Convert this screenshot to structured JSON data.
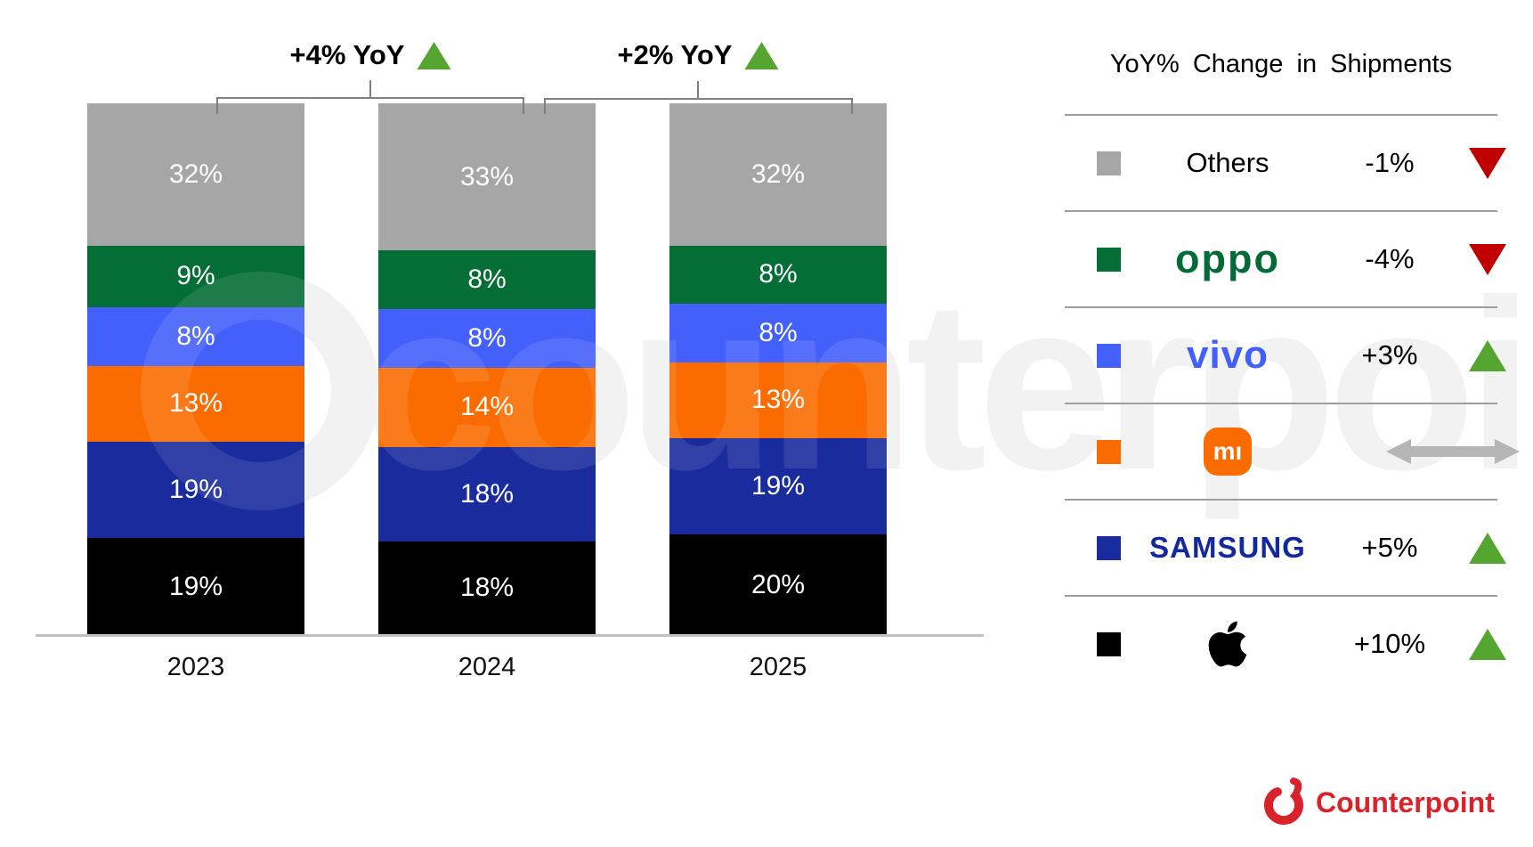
{
  "chart_data": {
    "type": "stacked-bar",
    "title": "",
    "categories": [
      "2023",
      "2024",
      "2025"
    ],
    "series": [
      {
        "name": "Others",
        "color": "#a6a6a6",
        "values": [
          32,
          33,
          32
        ]
      },
      {
        "name": "OPPO",
        "color": "#056e36",
        "values": [
          9,
          8,
          8
        ]
      },
      {
        "name": "vivo",
        "color": "#4360fb",
        "values": [
          8,
          8,
          8
        ]
      },
      {
        "name": "Xiaomi",
        "color": "#fa6c00",
        "values": [
          13,
          14,
          13
        ]
      },
      {
        "name": "Samsung",
        "color": "#1a2b9e",
        "values": [
          19,
          18,
          19
        ]
      },
      {
        "name": "Apple",
        "color": "#000000",
        "values": [
          19,
          18,
          20
        ]
      }
    ],
    "value_suffix": "%",
    "ylim": [
      0,
      100
    ],
    "grid": false,
    "legend_position": "right",
    "yoy_annotations": [
      {
        "label": "+4% YoY",
        "direction": "up",
        "from": "2023",
        "to": "2024"
      },
      {
        "label": "+2% YoY",
        "direction": "up",
        "from": "2024",
        "to": "2025"
      }
    ]
  },
  "legend": {
    "title": "YoY% Change in Shipments",
    "rows": [
      {
        "brand": "Others",
        "swatch": "#a6a6a6",
        "display": "text",
        "logo_text": "Others",
        "value": "-1%",
        "direction": "down"
      },
      {
        "brand": "OPPO",
        "swatch": "#056e36",
        "display": "oppo",
        "logo_text": "oppo",
        "value": "-4%",
        "direction": "down"
      },
      {
        "brand": "vivo",
        "swatch": "#4360fb",
        "display": "vivo",
        "logo_text": "vivo",
        "value": "+3%",
        "direction": "up"
      },
      {
        "brand": "Xiaomi",
        "swatch": "#fa6c00",
        "display": "mi",
        "logo_text": "mı",
        "value": "",
        "direction": "flat"
      },
      {
        "brand": "Samsung",
        "swatch": "#1a2b9e",
        "display": "samsung",
        "logo_text": "SAMSUNG",
        "value": "+5%",
        "direction": "up"
      },
      {
        "brand": "Apple",
        "swatch": "#000000",
        "display": "apple",
        "logo_text": "",
        "value": "+10%",
        "direction": "up"
      }
    ]
  },
  "colors": {
    "up": "#55a630",
    "down": "#c00000",
    "flat": "#b5b5b5",
    "oppo_logo": "#046a38",
    "vivo_logo": "#415ffb",
    "samsung_logo": "#1428a0",
    "mi_logo_bg": "#fa6c00",
    "counterpoint_red": "#d9232a"
  },
  "watermark": "counterpoint",
  "footer": {
    "brand": "Counterpoint"
  }
}
